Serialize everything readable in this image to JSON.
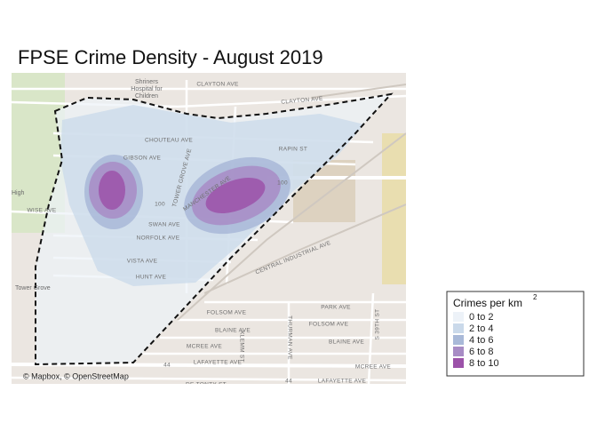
{
  "header": {
    "title": "FPSE Crime Density - August 2019"
  },
  "map": {
    "attribution": "© Mapbox, © OpenStreetMap",
    "poi": [
      "Shriners",
      "Hospital for",
      "Children",
      "Tower Grove",
      "High"
    ],
    "street_labels": [
      "CLAYTON AVE",
      "CLAYTON AVE",
      "CHOUTEAU AVE",
      "GIBSON AVE",
      "RAPIN ST",
      "MANCHESTER AVE",
      "SWAN AVE",
      "NORFOLK AVE",
      "VISTA AVE",
      "HUNT AVE",
      "CENTRAL INDUSTRIAL AVE",
      "PARK AVE",
      "FOLSOM AVE",
      "FOLSOM AVE",
      "BLAINE AVE",
      "BLAINE AVE",
      "MCREE AVE",
      "MCREE AVE",
      "LAFAYETTE AVE",
      "LAFAYETTE AVE",
      "DE TONTY ST",
      "WISE AVE",
      "TOWER GROVE AVE",
      "KLEMM ST",
      "THURMAN AVE",
      "S 39TH ST",
      "100",
      "100",
      "44",
      "44"
    ]
  },
  "legend": {
    "title": "Crimes per km",
    "title_superscript": "2",
    "items": [
      {
        "label": "0 to 2",
        "color": "#edf2f8"
      },
      {
        "label": "2 to 4",
        "color": "#cad9ea"
      },
      {
        "label": "4 to 6",
        "color": "#a9b9d8"
      },
      {
        "label": "6 to 8",
        "color": "#a88cc5"
      },
      {
        "label": "8 to 10",
        "color": "#9c52a9"
      }
    ]
  }
}
